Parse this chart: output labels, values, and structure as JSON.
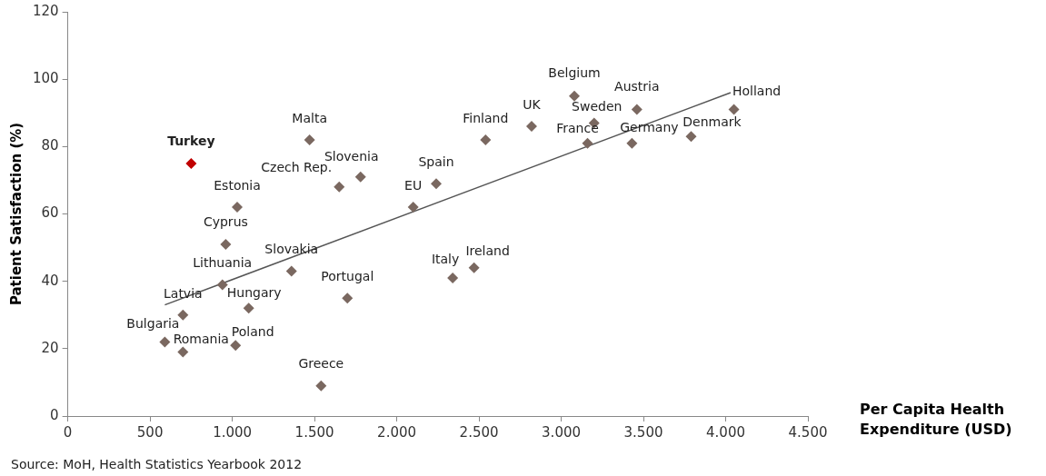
{
  "chart_data": {
    "type": "scatter",
    "ylabel": "Patient Satisfaction (%)",
    "xlabel": "Per Capita Health Expenditure (USD)",
    "xlim": [
      0,
      4500
    ],
    "xticks": [
      {
        "value": 0,
        "label": "0"
      },
      {
        "value": 500,
        "label": "500"
      },
      {
        "value": 1000,
        "label": "1.000"
      },
      {
        "value": 1500,
        "label": "1.500"
      },
      {
        "value": 2000,
        "label": "2.000"
      },
      {
        "value": 2500,
        "label": "2.500"
      },
      {
        "value": 3000,
        "label": "3.000"
      },
      {
        "value": 3500,
        "label": "3.500"
      },
      {
        "value": 4000,
        "label": "4.000"
      },
      {
        "value": 4500,
        "label": "4.500"
      }
    ],
    "ylim": [
      0,
      120
    ],
    "yticks": [
      0,
      20,
      40,
      60,
      80,
      100,
      120
    ],
    "grid": false,
    "legend": false,
    "marker": "diamond",
    "series": [
      {
        "color": "#c00000",
        "x": [
          750
        ],
        "values": [
          75
        ]
      },
      {
        "color": "#7a6860",
        "x": [
          1470,
          1650,
          1780,
          1030,
          960,
          1360,
          940,
          1700,
          1100,
          700,
          590,
          700,
          1020,
          1540,
          2100,
          2240,
          2540,
          2820,
          3080,
          3200,
          3160,
          3460,
          3430,
          3790,
          4050,
          2340,
          2470
        ],
        "values": [
          82,
          68,
          71,
          62,
          51,
          43,
          39,
          35,
          32,
          30,
          22,
          19,
          21,
          9,
          62,
          69,
          82,
          86,
          95,
          87,
          81,
          91,
          81,
          83,
          91,
          41,
          44
        ]
      },
      {
        "type": "line",
        "color": "#555555",
        "marker": "none",
        "x": [
          590,
          4030
        ],
        "values": [
          33,
          96
        ]
      }
    ],
    "annotations": [
      {
        "text": "Turkey",
        "x": 750,
        "y": 75
      },
      {
        "text": "Malta",
        "x": 1470,
        "y": 82
      },
      {
        "text": "Czech Rep.",
        "x": 1650,
        "y": 68
      },
      {
        "text": "Slovenia",
        "x": 1780,
        "y": 71
      },
      {
        "text": "Estonia",
        "x": 1030,
        "y": 62
      },
      {
        "text": "Cyprus",
        "x": 960,
        "y": 51
      },
      {
        "text": "Slovakia",
        "x": 1360,
        "y": 43
      },
      {
        "text": "Lithuania",
        "x": 940,
        "y": 39
      },
      {
        "text": "Portugal",
        "x": 1700,
        "y": 35
      },
      {
        "text": "Hungary",
        "x": 1100,
        "y": 32
      },
      {
        "text": "Latvia",
        "x": 700,
        "y": 30
      },
      {
        "text": "Bulgaria",
        "x": 590,
        "y": 22
      },
      {
        "text": "Romania",
        "x": 700,
        "y": 19
      },
      {
        "text": "Poland",
        "x": 1020,
        "y": 21
      },
      {
        "text": "Greece",
        "x": 1540,
        "y": 9
      },
      {
        "text": "EU",
        "x": 2100,
        "y": 62
      },
      {
        "text": "Spain",
        "x": 2240,
        "y": 69
      },
      {
        "text": "Finland",
        "x": 2540,
        "y": 82
      },
      {
        "text": "UK",
        "x": 2820,
        "y": 86
      },
      {
        "text": "Belgium",
        "x": 3080,
        "y": 95
      },
      {
        "text": "Sweden",
        "x": 3200,
        "y": 87
      },
      {
        "text": "France",
        "x": 3160,
        "y": 81
      },
      {
        "text": "Austria",
        "x": 3460,
        "y": 91
      },
      {
        "text": "Germany",
        "x": 3430,
        "y": 81
      },
      {
        "text": "Denmark",
        "x": 3790,
        "y": 83
      },
      {
        "text": "Holland",
        "x": 4050,
        "y": 91
      },
      {
        "text": "Italy",
        "x": 2340,
        "y": 41
      },
      {
        "text": "Ireland",
        "x": 2470,
        "y": 44
      },
      "Source: MoH, Health Statistics Yearbook 2012"
    ]
  }
}
